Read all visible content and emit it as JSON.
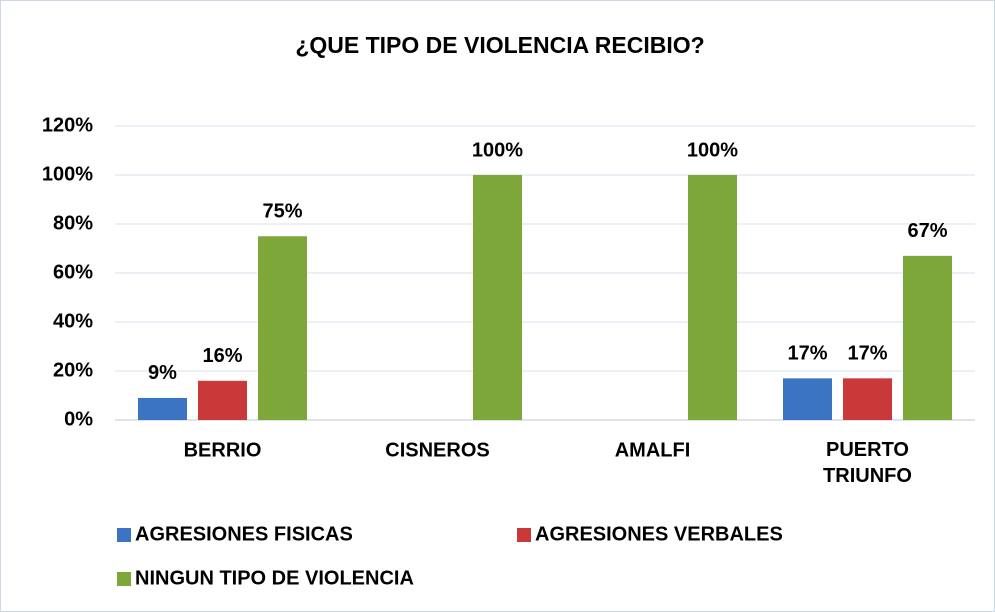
{
  "chart_data": {
    "type": "bar",
    "title": "¿QUE TIPO DE VIOLENCIA RECIBIO?",
    "categories": [
      "BERRIO",
      "CISNEROS",
      "AMALFI",
      "PUERTO TRIUNFO"
    ],
    "series": [
      {
        "name": "AGRESIONES FISICAS",
        "color": "#3b74c2",
        "values": [
          9,
          null,
          null,
          17
        ],
        "value_labels": [
          "9%",
          null,
          null,
          "17%"
        ]
      },
      {
        "name": "AGRESIONES VERBALES",
        "color": "#c9393a",
        "values": [
          16,
          null,
          null,
          17
        ],
        "value_labels": [
          "16%",
          null,
          null,
          "17%"
        ]
      },
      {
        "name": "NINGUN TIPO DE VIOLENCIA",
        "color": "#7ea73a",
        "values": [
          75,
          100,
          100,
          67
        ],
        "value_labels": [
          "75%",
          "100%",
          "100%",
          "67%"
        ]
      }
    ],
    "ylim": [
      0,
      120
    ],
    "yticks": [
      {
        "value": 0,
        "label": "0%"
      },
      {
        "value": 20,
        "label": "20%"
      },
      {
        "value": 40,
        "label": "40%"
      },
      {
        "value": 60,
        "label": "60%"
      },
      {
        "value": 80,
        "label": "80%"
      },
      {
        "value": 100,
        "label": "100%"
      },
      {
        "value": 120,
        "label": "120%"
      }
    ],
    "grid": true,
    "legend": "bottom"
  }
}
